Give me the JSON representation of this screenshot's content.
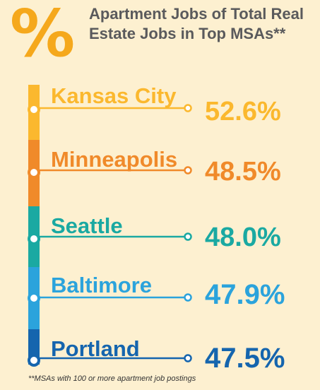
{
  "header": {
    "symbol": "%",
    "title": "Apartment Jobs of Total Real Estate Jobs in Top MSAs**"
  },
  "footnote": "**MSAs with 100 or more apartment job postings",
  "chart_data": {
    "type": "bar",
    "title": "Apartment Jobs of Total Real Estate Jobs in Top MSAs**",
    "categories": [
      "Kansas City",
      "Minneapolis",
      "Seattle",
      "Baltimore",
      "Portland"
    ],
    "values": [
      52.6,
      48.5,
      48.0,
      47.9,
      47.5
    ],
    "labels": [
      "52.6%",
      "48.5%",
      "48.0%",
      "47.9%",
      "47.5%"
    ],
    "unit": "%",
    "colors": [
      "#fbb82e",
      "#f08a2a",
      "#1aa9a2",
      "#2ba3dc",
      "#1565ae"
    ]
  }
}
